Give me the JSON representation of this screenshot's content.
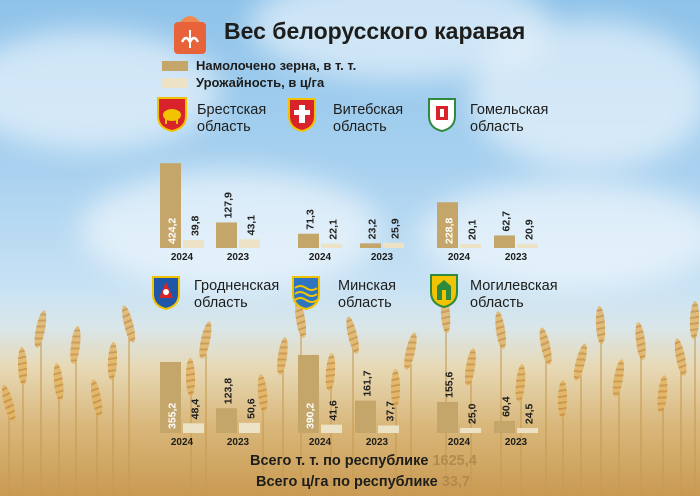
{
  "title": "Вес белорусского каравая",
  "colors": {
    "harvest": "#c4a66a",
    "yield": "#ece3c6",
    "title_icon": "#e8633a",
    "total_value": "#b18a4d"
  },
  "title_icon": "grain-sack-icon",
  "legend": [
    {
      "label": "Намолочено зерна, в т. т.",
      "color": "#c4a66a"
    },
    {
      "label": "Урожайность, в ц/га",
      "color": "#ece3c6"
    }
  ],
  "regions": [
    {
      "line1": "Брестская",
      "line2": "область",
      "emblem": "brest-emblem-icon"
    },
    {
      "line1": "Витебская",
      "line2": "область",
      "emblem": "vitebsk-emblem-icon"
    },
    {
      "line1": "Гомельская",
      "line2": "область",
      "emblem": "gomel-emblem-icon"
    },
    {
      "line1": "Гродненская",
      "line2": "область",
      "emblem": "grodno-emblem-icon"
    },
    {
      "line1": "Минская",
      "line2": "область",
      "emblem": "minsk-emblem-icon"
    },
    {
      "line1": "Могилевская",
      "line2": "область",
      "emblem": "mogilev-emblem-icon"
    }
  ],
  "chart_data": {
    "type": "bar",
    "series": [
      {
        "name": "Намолочено зерна, в т. т.",
        "key": "harvest"
      },
      {
        "name": "Урожайность, в ц/га",
        "key": "yield"
      }
    ],
    "groups": [
      {
        "region": "Брестская область",
        "year": "2024",
        "harvest": 424.2,
        "yield": 39.8,
        "harvest_label": "424,2",
        "yield_label": "39,8"
      },
      {
        "region": "Брестская область",
        "year": "2023",
        "harvest": 127.9,
        "yield": 43.1,
        "harvest_label": "127,9",
        "yield_label": "43,1"
      },
      {
        "region": "Витебская область",
        "year": "2024",
        "harvest": 71.3,
        "yield": 22.1,
        "harvest_label": "71,3",
        "yield_label": "22,1"
      },
      {
        "region": "Витебская область",
        "year": "2023",
        "harvest": 23.2,
        "yield": 25.9,
        "harvest_label": "23,2",
        "yield_label": "25,9"
      },
      {
        "region": "Гомельская область",
        "year": "2024",
        "harvest": 228.8,
        "yield": 20.1,
        "harvest_label": "228,8",
        "yield_label": "20,1"
      },
      {
        "region": "Гомельская область",
        "year": "2023",
        "harvest": 62.7,
        "yield": 20.9,
        "harvest_label": "62,7",
        "yield_label": "20,9"
      },
      {
        "region": "Гродненская область",
        "year": "2024",
        "harvest": 355.2,
        "yield": 48.4,
        "harvest_label": "355,2",
        "yield_label": "48,4"
      },
      {
        "region": "Гродненская область",
        "year": "2023",
        "harvest": 123.8,
        "yield": 50.6,
        "harvest_label": "123,8",
        "yield_label": "50,6"
      },
      {
        "region": "Минская область",
        "year": "2024",
        "harvest": 390.2,
        "yield": 41.6,
        "harvest_label": "390,2",
        "yield_label": "41,6"
      },
      {
        "region": "Минская область",
        "year": "2023",
        "harvest": 161.7,
        "yield": 37.7,
        "harvest_label": "161,7",
        "yield_label": "37,7"
      },
      {
        "region": "Могилевская область",
        "year": "2024",
        "harvest": 155.6,
        "yield": 25.0,
        "harvest_label": "155,6",
        "yield_label": "25,0"
      },
      {
        "region": "Могилевская область",
        "year": "2023",
        "harvest": 60.4,
        "yield": 24.5,
        "harvest_label": "60,4",
        "yield_label": "24,5"
      }
    ]
  },
  "totals": [
    {
      "label": "Всего т. т. по республике",
      "value": "1625,4"
    },
    {
      "label": "Всего ц/га по республике",
      "value": "33,7"
    }
  ]
}
